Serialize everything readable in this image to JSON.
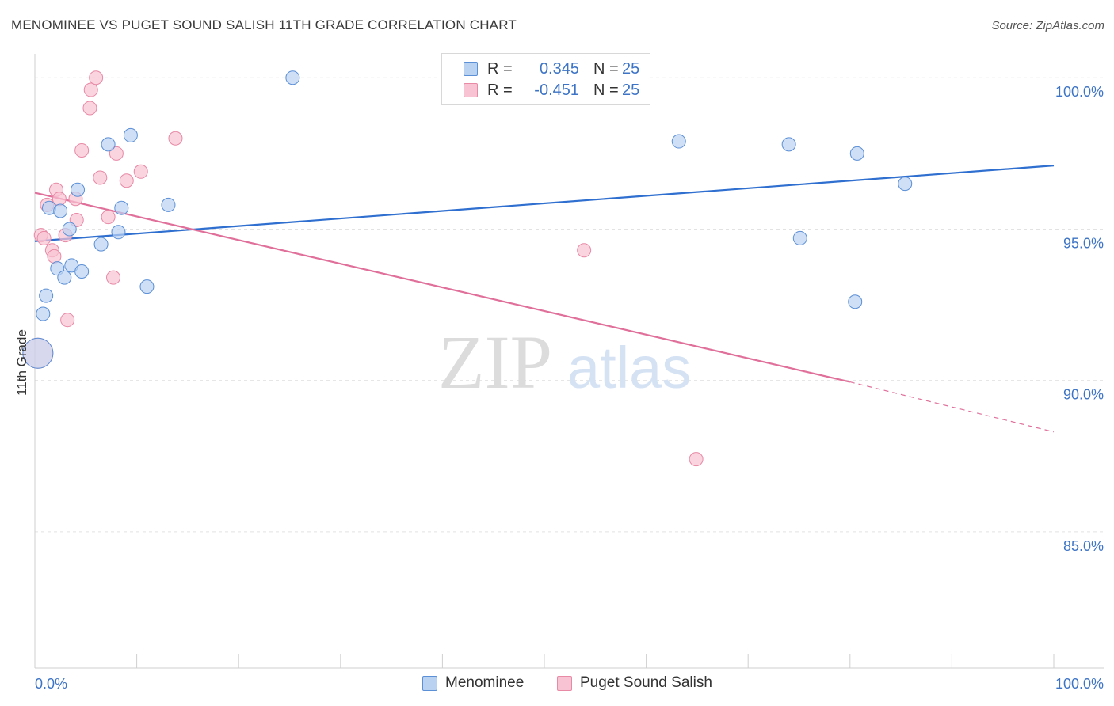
{
  "title": "MENOMINEE VS PUGET SOUND SALISH 11TH GRADE CORRELATION CHART",
  "source": "Source: ZipAtlas.com",
  "watermark": {
    "zip": "ZIP",
    "atlas": "atlas"
  },
  "colors": {
    "menominee_fill": "#b9d2f2",
    "menominee_stroke": "#5b8fd6",
    "menominee_line": "#2f6fcf",
    "salish_fill": "#f8c3d3",
    "salish_stroke": "#e889a6",
    "salish_line": "#e0709a",
    "axis_text": "#3d74c6",
    "grid": "#e2e2e2"
  },
  "legend": {
    "rows": [
      {
        "r_label": "R =",
        "r_value": "0.345",
        "n_label": "N =",
        "n_value": "25"
      },
      {
        "r_label": "R =",
        "r_value": "-0.451",
        "n_label": "N =",
        "n_value": "25"
      }
    ]
  },
  "bottom_legend": [
    "Menominee",
    "Puget Sound Salish"
  ],
  "chart_data": {
    "type": "scatter",
    "title": "MENOMINEE VS PUGET SOUND SALISH 11TH GRADE CORRELATION CHART",
    "xlabel": "",
    "ylabel": "11th Grade",
    "xlim": [
      0,
      100
    ],
    "ylim": [
      80.5,
      101
    ],
    "x_tick_labels": [
      "0.0%",
      "100.0%"
    ],
    "y_ticks": [
      100,
      95,
      90,
      85
    ],
    "y_tick_labels": [
      "100.0%",
      "95.0%",
      "90.0%",
      "85.0%"
    ],
    "grid": true,
    "series": [
      {
        "name": "Menominee",
        "points": [
          {
            "x": 0.3,
            "y": 90.9
          },
          {
            "x": 0.8,
            "y": 92.2
          },
          {
            "x": 1.1,
            "y": 92.8
          },
          {
            "x": 1.4,
            "y": 95.7
          },
          {
            "x": 2.2,
            "y": 93.7
          },
          {
            "x": 2.5,
            "y": 95.6
          },
          {
            "x": 2.9,
            "y": 93.4
          },
          {
            "x": 3.4,
            "y": 95.0
          },
          {
            "x": 3.6,
            "y": 93.8
          },
          {
            "x": 4.2,
            "y": 96.3
          },
          {
            "x": 4.6,
            "y": 93.6
          },
          {
            "x": 6.5,
            "y": 94.5
          },
          {
            "x": 7.2,
            "y": 97.8
          },
          {
            "x": 8.2,
            "y": 94.9
          },
          {
            "x": 8.5,
            "y": 95.7
          },
          {
            "x": 9.4,
            "y": 98.1
          },
          {
            "x": 11.0,
            "y": 93.1
          },
          {
            "x": 13.1,
            "y": 95.8
          },
          {
            "x": 25.3,
            "y": 100.0
          },
          {
            "x": 63.2,
            "y": 97.9
          },
          {
            "x": 74.0,
            "y": 97.8
          },
          {
            "x": 75.1,
            "y": 94.7
          },
          {
            "x": 80.5,
            "y": 92.6
          },
          {
            "x": 80.7,
            "y": 97.5
          },
          {
            "x": 85.4,
            "y": 96.5
          }
        ],
        "trend": {
          "x0": 0,
          "y0": 94.6,
          "x1": 100,
          "y1": 97.1
        }
      },
      {
        "name": "Puget Sound Salish",
        "points": [
          {
            "x": 0.3,
            "y": 90.9
          },
          {
            "x": 0.6,
            "y": 94.8
          },
          {
            "x": 0.9,
            "y": 94.7
          },
          {
            "x": 1.2,
            "y": 95.8
          },
          {
            "x": 1.7,
            "y": 94.3
          },
          {
            "x": 1.9,
            "y": 94.1
          },
          {
            "x": 2.1,
            "y": 96.3
          },
          {
            "x": 2.4,
            "y": 96.0
          },
          {
            "x": 3.0,
            "y": 94.8
          },
          {
            "x": 3.2,
            "y": 92.0
          },
          {
            "x": 4.0,
            "y": 96.0
          },
          {
            "x": 4.1,
            "y": 95.3
          },
          {
            "x": 4.6,
            "y": 97.6
          },
          {
            "x": 5.4,
            "y": 99.0
          },
          {
            "x": 5.5,
            "y": 99.6
          },
          {
            "x": 6.0,
            "y": 100.0
          },
          {
            "x": 6.4,
            "y": 96.7
          },
          {
            "x": 7.2,
            "y": 95.4
          },
          {
            "x": 7.7,
            "y": 93.4
          },
          {
            "x": 8.0,
            "y": 97.5
          },
          {
            "x": 9.0,
            "y": 96.6
          },
          {
            "x": 10.4,
            "y": 96.9
          },
          {
            "x": 13.8,
            "y": 98.0
          },
          {
            "x": 53.9,
            "y": 94.3
          },
          {
            "x": 64.9,
            "y": 87.4
          }
        ],
        "trend": {
          "x0": 0,
          "y0": 96.2,
          "x1": 80.0,
          "y1": 89.95,
          "dashed_to_x": 100,
          "dashed_to_y": 88.3
        }
      }
    ]
  }
}
